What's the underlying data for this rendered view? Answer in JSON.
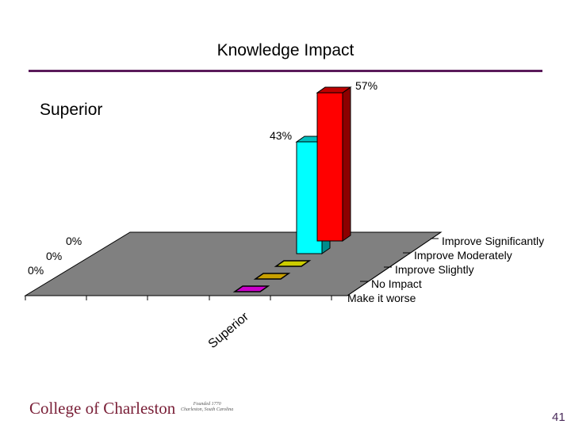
{
  "slide": {
    "title": "Knowledge Impact",
    "subtitle": "Superior",
    "logo": "College of Charleston",
    "founded_line1": "Founded 1770",
    "founded_line2": "Charleston, South Carolina",
    "page_number": "41"
  },
  "chart_data": {
    "type": "bar",
    "title": "Knowledge Impact",
    "subtitle": "Superior",
    "categories": [
      "Superior"
    ],
    "series": [
      {
        "name": "Make it worse",
        "values": [
          0
        ],
        "label": "0%",
        "color": "#cc00cc"
      },
      {
        "name": "No Impact",
        "values": [
          0
        ],
        "label": "0%",
        "color": "#c8a000"
      },
      {
        "name": "Improve Slightly",
        "values": [
          0
        ],
        "label": "0%",
        "color": "#cccc00"
      },
      {
        "name": "Improve Moderately",
        "values": [
          43
        ],
        "label": "43%",
        "color": "#00ffff"
      },
      {
        "name": "Improve Significantly",
        "values": [
          57
        ],
        "label": "57%",
        "color": "#ff0000"
      }
    ],
    "ylim": [
      0,
      60
    ],
    "unit": "%",
    "floor_color": "#808080"
  }
}
